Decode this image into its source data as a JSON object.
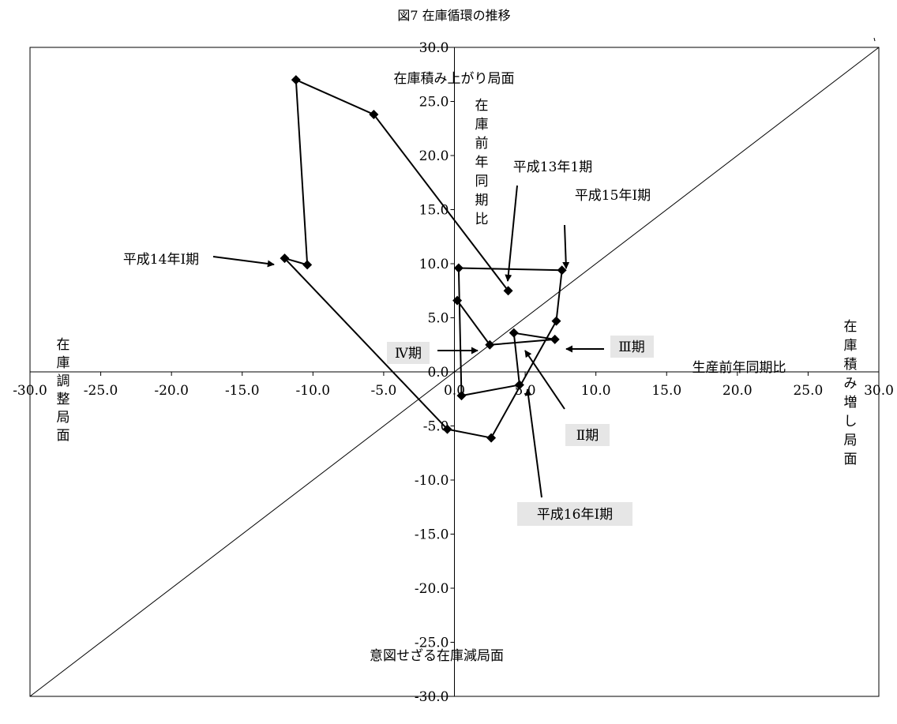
{
  "chart_data": {
    "type": "line",
    "title": "図7 在庫循環の推移",
    "xlabel": "生産前年同期比",
    "ylabel": "在庫前年同期比",
    "xlim": [
      -30,
      30
    ],
    "ylim": [
      -30,
      30
    ],
    "x_ticks": [
      "-30.0",
      "-25.0",
      "-20.0",
      "-15.0",
      "-10.0",
      "-5.0",
      "0.0",
      "5.0",
      "10.0",
      "15.0",
      "20.0",
      "25.0",
      "30.0"
    ],
    "y_ticks": [
      "30.0",
      "25.0",
      "20.0",
      "15.0",
      "10.0",
      "5.0",
      "0.0",
      "-5.0",
      "-10.0",
      "-15.0",
      "-20.0",
      "-25.0",
      "-30.0"
    ],
    "grid": false,
    "series": [
      {
        "points": [
          {
            "x": 3.8,
            "y": 7.5
          },
          {
            "x": -5.7,
            "y": 23.8
          },
          {
            "x": -11.2,
            "y": 27.0
          },
          {
            "x": -10.4,
            "y": 9.9
          },
          {
            "x": -12.0,
            "y": 10.5
          },
          {
            "x": -0.5,
            "y": -5.3
          },
          {
            "x": 2.6,
            "y": -6.1
          },
          {
            "x": 7.2,
            "y": 4.7
          },
          {
            "x": 7.6,
            "y": 9.4
          },
          {
            "x": 0.3,
            "y": 9.6
          },
          {
            "x": 0.5,
            "y": -2.2
          },
          {
            "x": 4.6,
            "y": -1.2
          },
          {
            "x": 4.2,
            "y": 3.6
          },
          {
            "x": 7.1,
            "y": 3.0
          },
          {
            "x": 2.5,
            "y": 2.5
          },
          {
            "x": 0.2,
            "y": 6.6
          }
        ]
      }
    ],
    "diagonal_line": {
      "from": [
        -30,
        -30
      ],
      "to": [
        30,
        30
      ]
    },
    "quadrant_labels": {
      "top": "在庫積み上がり局面",
      "bottom": "意図せざる在庫減局面",
      "left": "在庫調整局面",
      "right": "在庫積み増し局面"
    },
    "annotations": [
      {
        "text": "平成13年1期"
      },
      {
        "text": "平成15年Ⅰ期"
      },
      {
        "text": "平成14年Ⅰ期"
      },
      {
        "text": "Ⅳ期"
      },
      {
        "text": "Ⅲ期"
      },
      {
        "text": "Ⅱ期"
      },
      {
        "text": "平成16年Ⅰ期"
      }
    ]
  }
}
